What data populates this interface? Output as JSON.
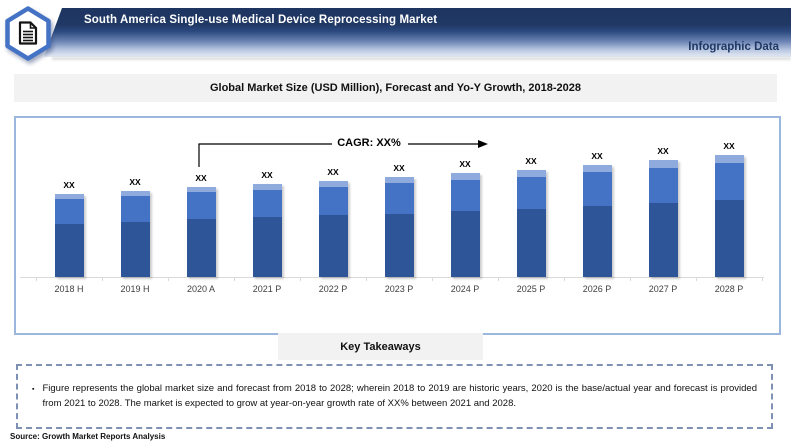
{
  "header": {
    "title": "South America Single-use Medical Device Reprocessing Market",
    "corner_label": "Infographic Data",
    "icon": "document-in-hexagon",
    "colors": {
      "banner_dark": "#203864",
      "accent": "#4472C4"
    }
  },
  "chart_title": "Global Market Size (USD Million), Forecast and Yo-Y Growth, 2018-2028",
  "chart_data": {
    "type": "bar",
    "stacked": true,
    "title": "Global Market Size (USD Million), Forecast and Yo-Y Growth, 2018-2028",
    "categories": [
      "2018 H",
      "2019 H",
      "2020 A",
      "2021 P",
      "2022 P",
      "2023 P",
      "2024 P",
      "2025 P",
      "2026 P",
      "2027 P",
      "2028 P"
    ],
    "series": [
      {
        "name": "base-segment",
        "color": "#2E5597",
        "values": [
          53,
          55,
          58,
          60,
          62,
          63,
          66,
          68,
          71,
          74,
          77
        ]
      },
      {
        "name": "mid-segment",
        "color": "#4472C4",
        "values": [
          25,
          26,
          27,
          27,
          28,
          31,
          31,
          32,
          34,
          35,
          37
        ]
      },
      {
        "name": "top-segment",
        "color": "#8FAADC",
        "values": [
          5,
          5,
          5,
          6,
          6,
          6,
          7,
          7,
          7,
          8,
          8
        ]
      }
    ],
    "bar_labels": [
      "XX",
      "XX",
      "XX",
      "XX",
      "XX",
      "XX",
      "XX",
      "XX",
      "XX",
      "XX",
      "XX"
    ],
    "annotation": {
      "text": "CAGR: XX%",
      "from_category": "2020 A"
    },
    "xlabel": "",
    "ylabel": "",
    "y_axis_shown": false,
    "grid": false,
    "legend": false,
    "note": "values masked as XX; series values are relative heights"
  },
  "key_takeaways": {
    "heading": "Key Takeaways",
    "bullets": [
      "Figure represents the global market size and forecast from 2018 to 2028; wherein 2018 to 2019 are historic years, 2020 is the base/actual year and forecast is provided from 2021 to 2028. The market is expected to grow at year-on-year growth rate of XX% between 2021 and 2028."
    ]
  },
  "source": "Source: Growth Market Reports Analysis"
}
